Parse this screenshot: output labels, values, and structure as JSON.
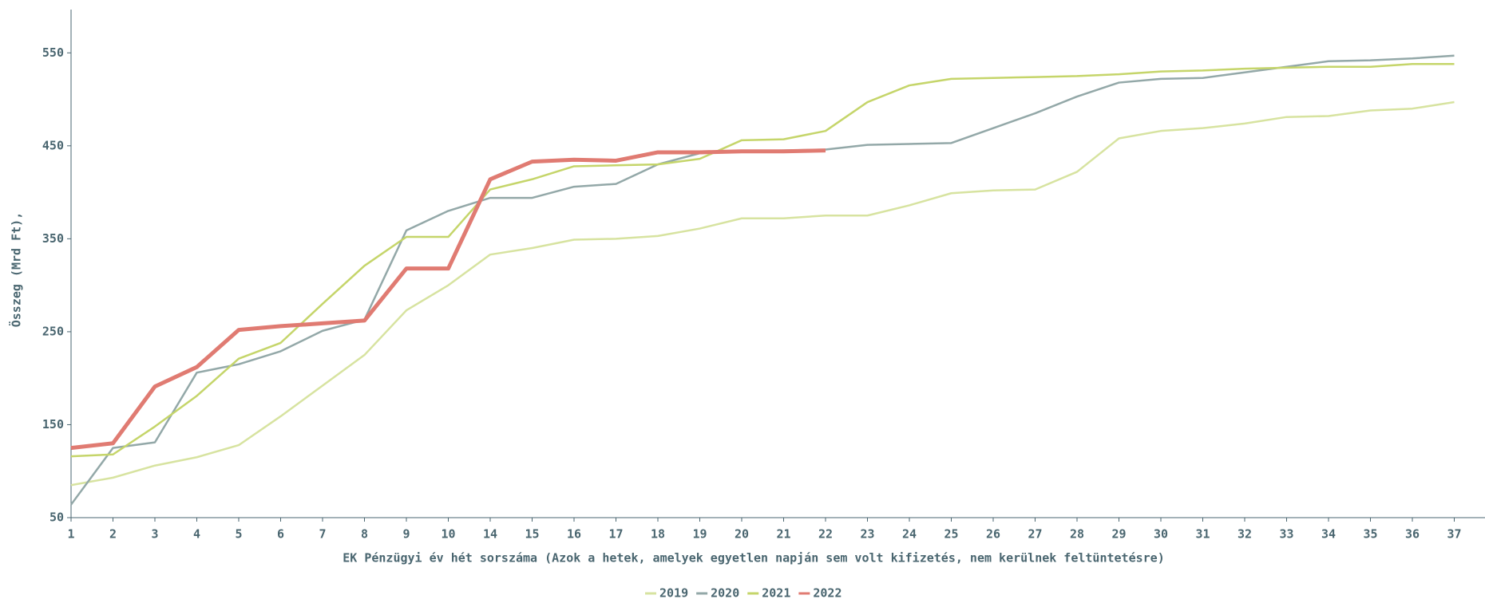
{
  "chart_data": {
    "type": "line",
    "x_label": "EK Pénzügyi év hét sorszáma (Azok a hetek, amelyek egyetlen napján sem volt kifizetés, nem kerülnek feltüntetésre)",
    "y_label": "Összeg (Mrd Ft),",
    "categories": [
      "1",
      "2",
      "3",
      "4",
      "5",
      "6",
      "7",
      "8",
      "9",
      "10",
      "14",
      "15",
      "16",
      "17",
      "18",
      "19",
      "20",
      "21",
      "22",
      "23",
      "24",
      "25",
      "26",
      "27",
      "28",
      "29",
      "30",
      "31",
      "32",
      "33",
      "34",
      "35",
      "36",
      "37"
    ],
    "ylim": [
      50,
      600
    ],
    "yticks": [
      50,
      150,
      250,
      350,
      450,
      550
    ],
    "legend": "bottom",
    "series": [
      {
        "name": "2019",
        "color": "#d7e3a0",
        "values": [
          85,
          93,
          106,
          115,
          128,
          159,
          192,
          225,
          273,
          300,
          333,
          340,
          349,
          350,
          353,
          361,
          372,
          372,
          375,
          375,
          386,
          399,
          402,
          403,
          422,
          458,
          466,
          469,
          474,
          481,
          482,
          488,
          490,
          497
        ]
      },
      {
        "name": "2020",
        "color": "#93a8a8",
        "values": [
          64,
          125,
          131,
          206,
          215,
          229,
          251,
          263,
          359,
          380,
          394,
          394,
          406,
          409,
          430,
          442,
          444,
          445,
          446,
          451,
          452,
          453,
          469,
          485,
          503,
          518,
          522,
          523,
          529,
          535,
          541,
          542,
          544,
          547
        ]
      },
      {
        "name": "2021",
        "color": "#c5d56a",
        "values": [
          116,
          118,
          148,
          181,
          221,
          238,
          280,
          321,
          352,
          352,
          403,
          414,
          428,
          429,
          430,
          436,
          456,
          457,
          466,
          497,
          515,
          522,
          523,
          524,
          525,
          527,
          530,
          531,
          533,
          534,
          535,
          535,
          538,
          538
        ]
      },
      {
        "name": "2022",
        "color": "#e07b72",
        "values": [
          125,
          130,
          191,
          212,
          252,
          256,
          259,
          262,
          318,
          318,
          414,
          433,
          435,
          434,
          443,
          443,
          444,
          444,
          445,
          null,
          null,
          null,
          null,
          null,
          null,
          null,
          null,
          null,
          null,
          null,
          null,
          null,
          null,
          null
        ]
      }
    ]
  }
}
